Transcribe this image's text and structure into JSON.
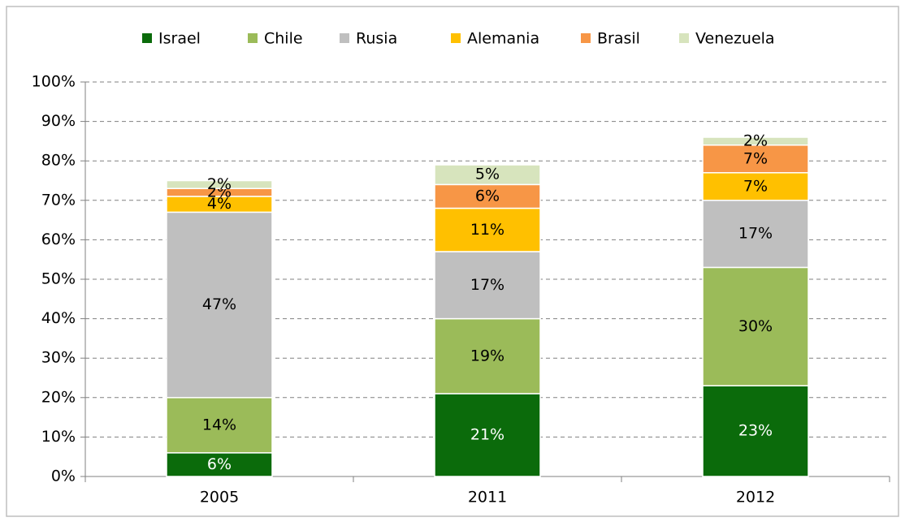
{
  "chart_data": {
    "type": "stacked_bar",
    "categories": [
      "2005",
      "2011",
      "2012"
    ],
    "series": [
      {
        "name": "Israel",
        "color": "#0b6b0b",
        "values": [
          6,
          21,
          23
        ],
        "value_labels": [
          "6%",
          "21%",
          "23%"
        ]
      },
      {
        "name": "Chile",
        "color": "#9bbb59",
        "values": [
          14,
          19,
          30
        ],
        "value_labels": [
          "14%",
          "19%",
          "30%"
        ]
      },
      {
        "name": "Rusia",
        "color": "#bfbfbf",
        "values": [
          47,
          17,
          17
        ],
        "value_labels": [
          "47%",
          "17%",
          "17%"
        ]
      },
      {
        "name": "Alemania",
        "color": "#ffc000",
        "values": [
          4,
          11,
          7
        ],
        "value_labels": [
          "4%",
          "11%",
          "7%"
        ]
      },
      {
        "name": "Brasil",
        "color": "#f79646",
        "values": [
          2,
          6,
          7
        ],
        "value_labels": [
          "2%",
          "6%",
          "7%"
        ]
      },
      {
        "name": "Venezuela",
        "color": "#d7e4bd",
        "values": [
          2,
          5,
          2
        ],
        "value_labels": [
          "2%",
          "5%",
          "2%"
        ]
      }
    ],
    "ylim": [
      0,
      100
    ],
    "yticks": [
      {
        "value": 0,
        "label": "0%"
      },
      {
        "value": 10,
        "label": "10%"
      },
      {
        "value": 20,
        "label": "20%"
      },
      {
        "value": 30,
        "label": "30%"
      },
      {
        "value": 40,
        "label": "40%"
      },
      {
        "value": 50,
        "label": "50%"
      },
      {
        "value": 60,
        "label": "60%"
      },
      {
        "value": 70,
        "label": "70%"
      },
      {
        "value": 80,
        "label": "80%"
      },
      {
        "value": 90,
        "label": "90%"
      },
      {
        "value": 100,
        "label": "100%"
      }
    ],
    "grid": true,
    "legend": "top"
  }
}
